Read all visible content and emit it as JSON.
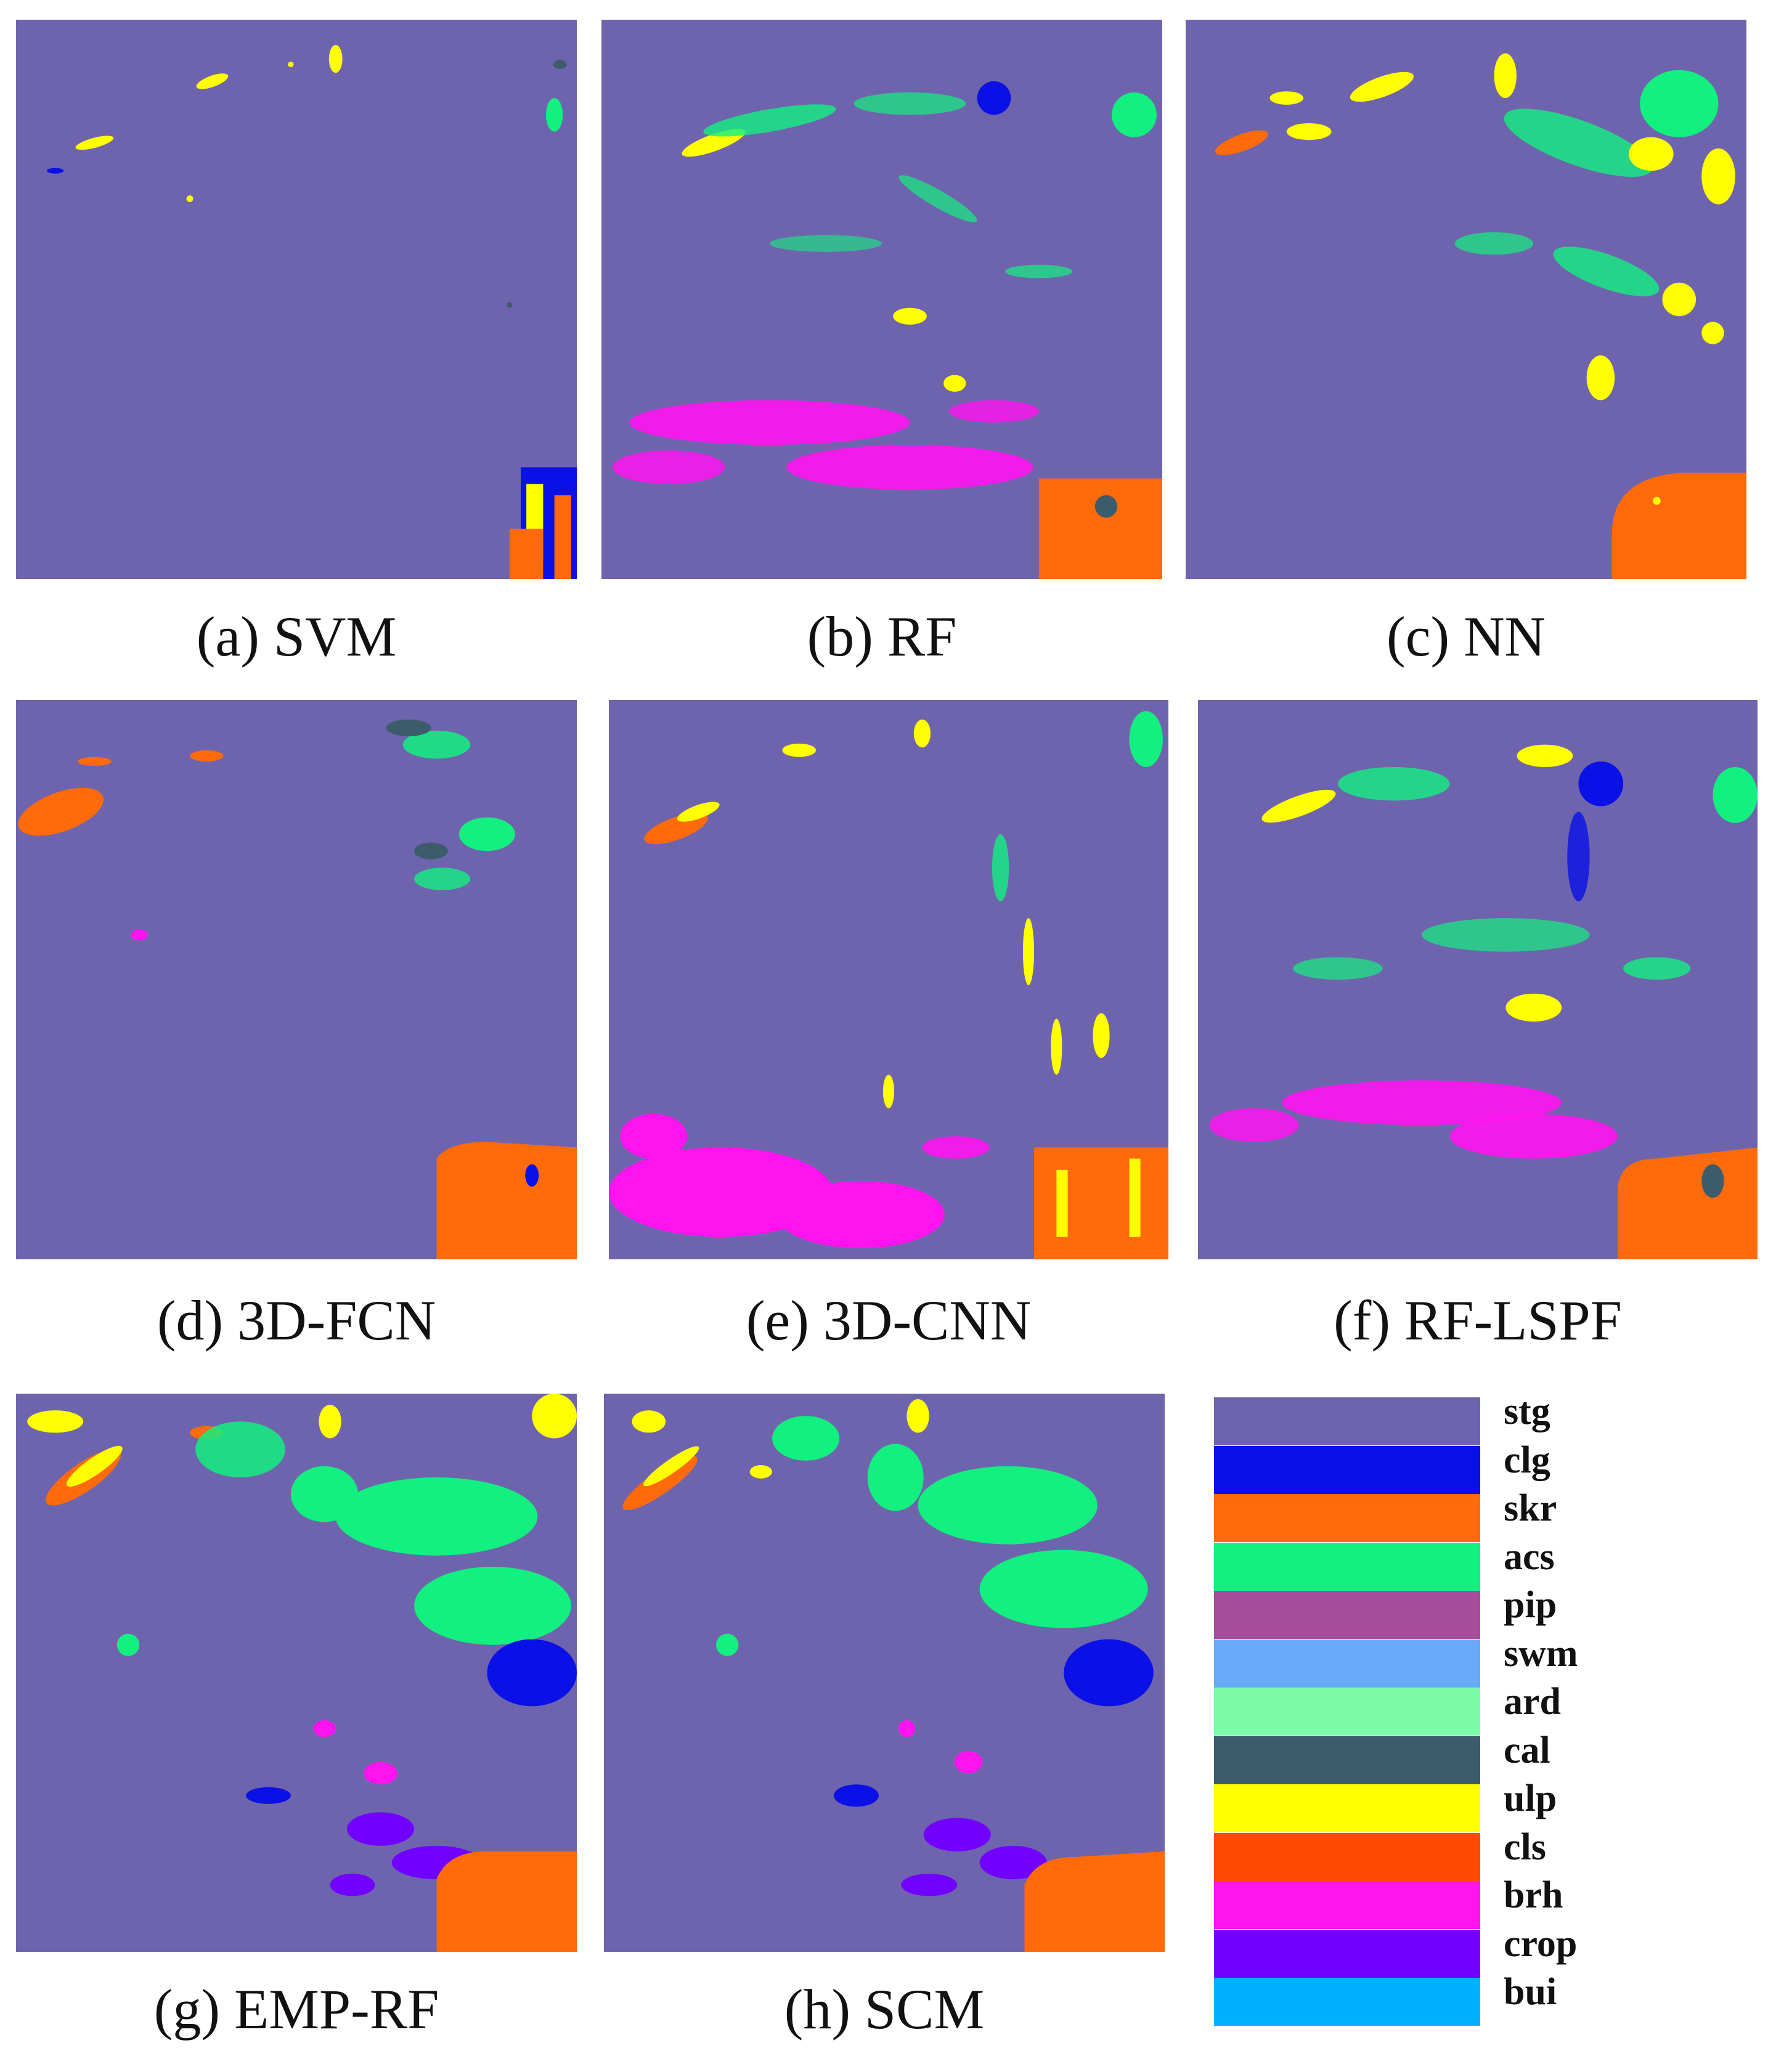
{
  "figure": {
    "panels": [
      {
        "id": "a",
        "caption": "(a) SVM"
      },
      {
        "id": "b",
        "caption": "(b) RF"
      },
      {
        "id": "c",
        "caption": "(c) NN"
      },
      {
        "id": "d",
        "caption": "(d) 3D-FCN"
      },
      {
        "id": "e",
        "caption": "(e) 3D-CNN"
      },
      {
        "id": "f",
        "caption": "(f) RF-LSPF"
      },
      {
        "id": "g",
        "caption": "(g) EMP-RF"
      },
      {
        "id": "h",
        "caption": "(h) SCM"
      }
    ],
    "legend": [
      {
        "label": "stg",
        "color": "#6e64ad"
      },
      {
        "label": "clg",
        "color": "#0a10e6"
      },
      {
        "label": "skr",
        "color": "#ff6a0a"
      },
      {
        "label": "acs",
        "color": "#12f07f"
      },
      {
        "label": "pip",
        "color": "#a64e9b"
      },
      {
        "label": "swm",
        "color": "#66aaf8"
      },
      {
        "label": "ard",
        "color": "#7cfba8"
      },
      {
        "label": "cal",
        "color": "#3c5c6c"
      },
      {
        "label": "ulp",
        "color": "#ffff00"
      },
      {
        "label": "cls",
        "color": "#ff4a06"
      },
      {
        "label": "brh",
        "color": "#ff14ef"
      },
      {
        "label": "crop",
        "color": "#7202ff"
      },
      {
        "label": "bui",
        "color": "#00b0ff"
      }
    ]
  }
}
